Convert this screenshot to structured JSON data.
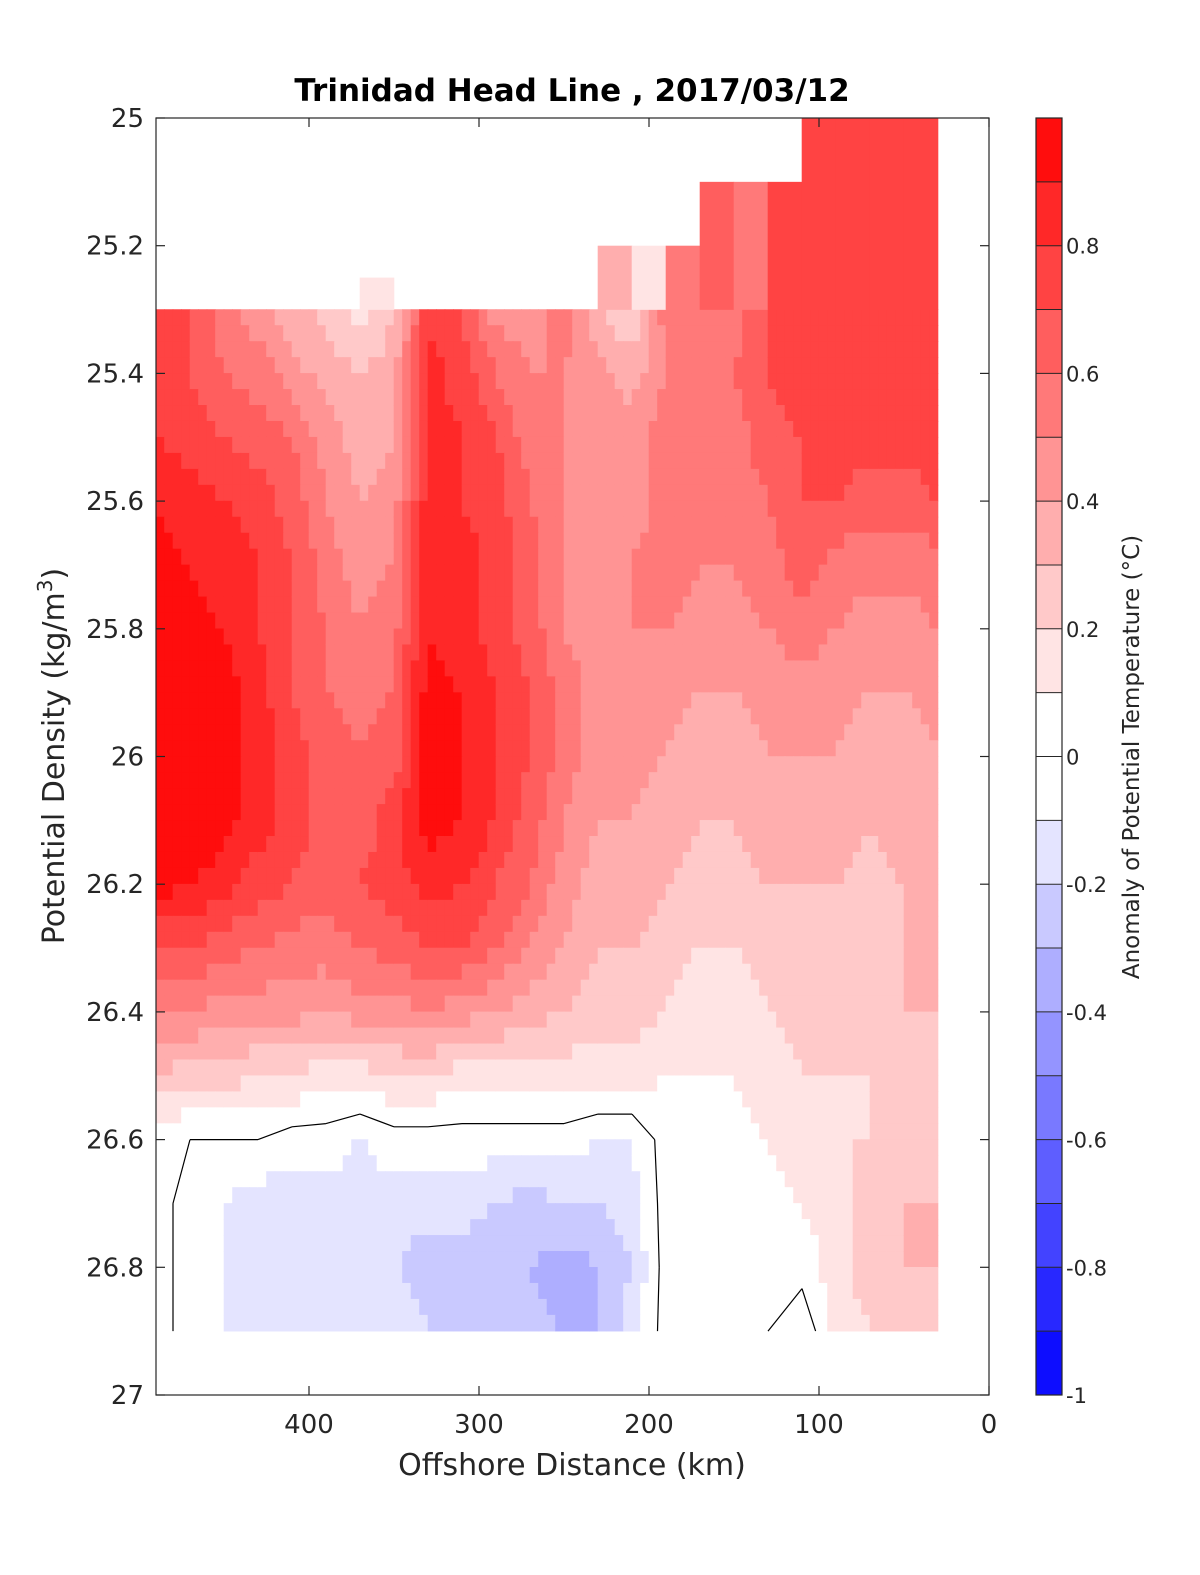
{
  "chart_data": {
    "type": "heatmap",
    "subtype": "filled-contour section",
    "title": "Trinidad Head Line , 2017/03/12",
    "xlabel": "Offshore Distance (km)",
    "ylabel": "Potential Density (kg/m",
    "ylabel_sup": "3",
    "ylabel_end": ")",
    "xlim": [
      490,
      0
    ],
    "x_reversed": true,
    "ylim": [
      25,
      27
    ],
    "y_reversed": true,
    "x_ticks": [
      "400",
      "300",
      "200",
      "100",
      "0"
    ],
    "y_ticks": [
      "25",
      "25.2",
      "25.4",
      "25.6",
      "25.8",
      "26",
      "26.2",
      "26.4",
      "26.6",
      "26.8",
      "27"
    ],
    "colorbar": {
      "label": "Anomaly of Potential Temperature (°C)",
      "range": [
        -1,
        1
      ],
      "step": 0.1,
      "tick_labels": [
        "-1",
        "-0.8",
        "-0.6",
        "-0.4",
        "-0.2",
        "0",
        "0.2",
        "0.4",
        "0.6",
        "0.8"
      ],
      "low_color": "#0000ff",
      "mid_color": "#ffffff",
      "high_color": "#ff0000"
    },
    "zero_contour": true,
    "x": [
      490,
      470,
      450,
      430,
      410,
      390,
      370,
      350,
      330,
      310,
      290,
      270,
      250,
      230,
      210,
      190,
      170,
      150,
      130,
      110,
      90,
      70,
      50,
      30
    ],
    "y": [
      25.3,
      25.4,
      25.5,
      25.6,
      25.7,
      25.8,
      25.9,
      26.0,
      26.1,
      26.2,
      26.3,
      26.4,
      26.5,
      26.6,
      26.7,
      26.8,
      26.9
    ],
    "values": [
      [
        0.75,
        0.7,
        0.55,
        0.45,
        0.35,
        0.25,
        0.15,
        0.3,
        0.75,
        0.7,
        0.45,
        0.45,
        0.55,
        0.3,
        0.2,
        0.55,
        0.6,
        0.55,
        0.7,
        0.75,
        0.75,
        0.75,
        0.75,
        0.75
      ],
      [
        0.75,
        0.7,
        0.6,
        0.55,
        0.45,
        0.35,
        0.3,
        0.35,
        0.85,
        0.75,
        0.6,
        0.5,
        0.5,
        0.45,
        0.35,
        0.5,
        0.6,
        0.6,
        0.7,
        0.75,
        0.75,
        0.75,
        0.75,
        0.75
      ],
      [
        0.8,
        0.75,
        0.7,
        0.65,
        0.6,
        0.45,
        0.35,
        0.4,
        0.85,
        0.8,
        0.7,
        0.55,
        0.5,
        0.45,
        0.45,
        0.55,
        0.6,
        0.55,
        0.65,
        0.7,
        0.75,
        0.75,
        0.75,
        0.75
      ],
      [
        0.9,
        0.85,
        0.8,
        0.75,
        0.65,
        0.5,
        0.4,
        0.45,
        0.85,
        0.8,
        0.75,
        0.6,
        0.5,
        0.45,
        0.45,
        0.55,
        0.55,
        0.55,
        0.6,
        0.7,
        0.7,
        0.65,
        0.65,
        0.7
      ],
      [
        0.95,
        0.9,
        0.85,
        0.8,
        0.7,
        0.55,
        0.45,
        0.5,
        0.85,
        0.85,
        0.75,
        0.65,
        0.5,
        0.45,
        0.5,
        0.55,
        0.5,
        0.5,
        0.55,
        0.65,
        0.55,
        0.55,
        0.55,
        0.55
      ],
      [
        1.0,
        0.95,
        0.9,
        0.8,
        0.7,
        0.6,
        0.5,
        0.55,
        0.9,
        0.85,
        0.75,
        0.65,
        0.5,
        0.45,
        0.5,
        0.5,
        0.45,
        0.45,
        0.5,
        0.55,
        0.5,
        0.45,
        0.45,
        0.5
      ],
      [
        1.0,
        1.0,
        0.95,
        0.85,
        0.7,
        0.6,
        0.55,
        0.6,
        0.95,
        0.9,
        0.8,
        0.7,
        0.55,
        0.45,
        0.45,
        0.45,
        0.4,
        0.4,
        0.45,
        0.45,
        0.45,
        0.4,
        0.4,
        0.45
      ],
      [
        1.0,
        1.0,
        0.95,
        0.85,
        0.75,
        0.65,
        0.6,
        0.65,
        0.95,
        0.9,
        0.8,
        0.7,
        0.55,
        0.45,
        0.45,
        0.4,
        0.35,
        0.35,
        0.4,
        0.4,
        0.4,
        0.35,
        0.35,
        0.4
      ],
      [
        1.0,
        1.0,
        0.95,
        0.85,
        0.75,
        0.65,
        0.65,
        0.75,
        0.95,
        0.9,
        0.8,
        0.65,
        0.5,
        0.4,
        0.4,
        0.35,
        0.3,
        0.3,
        0.35,
        0.35,
        0.35,
        0.3,
        0.35,
        0.35
      ],
      [
        0.95,
        0.9,
        0.85,
        0.75,
        0.7,
        0.65,
        0.7,
        0.75,
        0.85,
        0.8,
        0.7,
        0.6,
        0.45,
        0.35,
        0.35,
        0.3,
        0.25,
        0.25,
        0.3,
        0.3,
        0.3,
        0.25,
        0.3,
        0.3
      ],
      [
        0.7,
        0.7,
        0.65,
        0.6,
        0.55,
        0.55,
        0.6,
        0.65,
        0.7,
        0.7,
        0.6,
        0.5,
        0.4,
        0.3,
        0.3,
        0.25,
        0.2,
        0.2,
        0.25,
        0.3,
        0.25,
        0.25,
        0.3,
        0.3
      ],
      [
        0.5,
        0.5,
        0.45,
        0.45,
        0.45,
        0.4,
        0.45,
        0.45,
        0.5,
        0.45,
        0.4,
        0.35,
        0.3,
        0.25,
        0.25,
        0.2,
        0.15,
        0.15,
        0.2,
        0.25,
        0.2,
        0.25,
        0.3,
        0.3
      ],
      [
        0.3,
        0.25,
        0.25,
        0.2,
        0.2,
        0.15,
        0.15,
        0.2,
        0.2,
        0.15,
        0.15,
        0.15,
        0.15,
        0.15,
        0.15,
        0.1,
        0.1,
        0.1,
        0.15,
        0.2,
        0.2,
        0.2,
        0.25,
        0.25
      ],
      [
        0.0,
        0.0,
        0.0,
        0.0,
        -0.05,
        -0.05,
        -0.1,
        -0.05,
        -0.05,
        -0.05,
        -0.05,
        -0.05,
        -0.05,
        -0.1,
        -0.1,
        0.05,
        0.05,
        0.05,
        0.1,
        0.15,
        0.2,
        0.2,
        0.25,
        0.25
      ],
      [
        0.05,
        -0.05,
        -0.1,
        -0.15,
        -0.15,
        -0.15,
        -0.15,
        -0.15,
        -0.15,
        -0.15,
        -0.2,
        -0.25,
        -0.2,
        -0.2,
        -0.15,
        0.05,
        0.05,
        0.05,
        0.05,
        0.1,
        0.15,
        0.25,
        0.3,
        0.3
      ],
      [
        0.05,
        -0.05,
        -0.1,
        -0.15,
        -0.15,
        -0.2,
        -0.2,
        -0.2,
        -0.25,
        -0.25,
        -0.3,
        -0.3,
        -0.35,
        -0.3,
        -0.2,
        0.05,
        0.05,
        0.05,
        0.0,
        0.05,
        0.15,
        0.25,
        0.3,
        0.3
      ],
      [
        0.05,
        -0.05,
        -0.1,
        -0.1,
        -0.15,
        -0.15,
        -0.1,
        -0.15,
        -0.2,
        -0.25,
        -0.2,
        -0.25,
        -0.3,
        -0.3,
        -0.15,
        0.05,
        0.05,
        0.05,
        0.0,
        -0.1,
        0.15,
        0.2,
        0.25,
        0.3
      ]
    ],
    "data_top_y_per_column": [
      25.3,
      25.3,
      25.3,
      25.3,
      25.3,
      25.3,
      25.2,
      25.25,
      25.3,
      25.2,
      25.3,
      25.3,
      25.3,
      25.2,
      25.2,
      25.2,
      25.1,
      25.1,
      25.1,
      25.0,
      25.0,
      25.0,
      25.0,
      25.0
    ]
  }
}
